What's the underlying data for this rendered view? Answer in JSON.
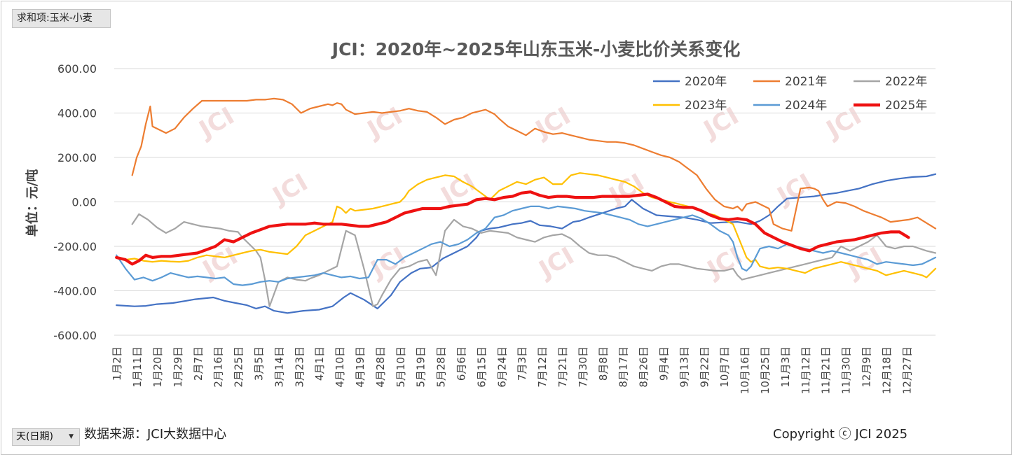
{
  "controls": {
    "field_button": "求和项:玉米-小麦",
    "axis_dropdown": "天(日期)",
    "dropdown_arrow": "▼"
  },
  "footer": {
    "source": "数据来源：JCI大数据中心",
    "copyright": "Copyright ⓒ JCI 2025"
  },
  "watermark": "JCI",
  "chart_data": {
    "type": "line",
    "title": "JCI：2020年~2025年山东玉米-小麦比价关系变化",
    "ylabel": "单位：元/吨",
    "xlabel": "",
    "ylim": [
      -600,
      600
    ],
    "yticks": [
      600,
      400,
      200,
      0,
      -200,
      -400,
      -600
    ],
    "ytick_labels": [
      "600.00",
      "400.00",
      "200.00",
      "0.00",
      "-200.00",
      "-400.00",
      "-600.00"
    ],
    "x_domain": [
      1,
      366
    ],
    "x_ticks": [
      2,
      11,
      20,
      29,
      38,
      47,
      56,
      65,
      74,
      83,
      92,
      101,
      110,
      119,
      128,
      137,
      146,
      155,
      164,
      173,
      182,
      191,
      200,
      209,
      218,
      227,
      236,
      245,
      254,
      263,
      272,
      281,
      290,
      299,
      308,
      317,
      326,
      335,
      344,
      353,
      362
    ],
    "categories": [
      "1月2日",
      "1月11日",
      "1月20日",
      "1月29日",
      "2月7日",
      "2月16日",
      "2月25日",
      "3月5日",
      "3月14日",
      "3月23日",
      "4月1日",
      "4月10日",
      "4月19日",
      "4月28日",
      "5月10日",
      "5月19日",
      "5月28日",
      "6月6日",
      "6月15日",
      "6月24日",
      "7月3日",
      "7月12日",
      "7月21日",
      "7月30日",
      "8月8日",
      "8月17日",
      "8月26日",
      "9月4日",
      "9月13日",
      "9月22日",
      "10月7日",
      "10月16日",
      "10月25日",
      "11月3日",
      "11月12日",
      "11月21日",
      "11月30日",
      "12月9日",
      "12月18日",
      "12月27日"
    ],
    "legend_position": "top-right",
    "grid": "horizontal",
    "series": [
      {
        "name": "2020年",
        "color": "#4472c4",
        "width": 2.2,
        "x": [
          2,
          10,
          15,
          20,
          27,
          33,
          37,
          40,
          45,
          50,
          55,
          60,
          64,
          68,
          72,
          78,
          85,
          92,
          98,
          103,
          106,
          112,
          118,
          124,
          128,
          133,
          137,
          142,
          147,
          152,
          158,
          162,
          164,
          168,
          172,
          178,
          182,
          186,
          190,
          195,
          200,
          205,
          208,
          212,
          218,
          224,
          228,
          231,
          236,
          242,
          248,
          254,
          260,
          266,
          272,
          278,
          284,
          288,
          292,
          296,
          300,
          306,
          312,
          318,
          322,
          327,
          332,
          338,
          344,
          350,
          356,
          362,
          366
        ],
        "y": [
          -465,
          -470,
          -468,
          -460,
          -455,
          -445,
          -438,
          -435,
          -430,
          -445,
          -455,
          -465,
          -480,
          -470,
          -490,
          -500,
          -490,
          -485,
          -470,
          -430,
          -410,
          -440,
          -480,
          -420,
          -360,
          -320,
          -300,
          -295,
          -255,
          -230,
          -200,
          -160,
          -130,
          -120,
          -115,
          -100,
          -95,
          -85,
          -105,
          -110,
          -120,
          -90,
          -85,
          -70,
          -50,
          -30,
          -20,
          10,
          -30,
          -60,
          -65,
          -70,
          -80,
          -95,
          -92,
          -90,
          -100,
          -85,
          -60,
          -20,
          15,
          20,
          25,
          35,
          40,
          50,
          60,
          80,
          95,
          105,
          112,
          115,
          125
        ]
      },
      {
        "name": "2021年",
        "color": "#ed7d31",
        "width": 2.2,
        "x": [
          9,
          11,
          13,
          15,
          17,
          18,
          20,
          24,
          28,
          32,
          36,
          40,
          44,
          48,
          52,
          56,
          60,
          64,
          68,
          72,
          76,
          80,
          84,
          88,
          92,
          96,
          98,
          100,
          102,
          104,
          108,
          112,
          116,
          120,
          124,
          128,
          132,
          136,
          140,
          144,
          148,
          152,
          156,
          160,
          164,
          166,
          168,
          170,
          172,
          176,
          180,
          184,
          188,
          192,
          196,
          200,
          204,
          208,
          212,
          216,
          220,
          224,
          228,
          232,
          236,
          240,
          244,
          248,
          252,
          256,
          260,
          264,
          268,
          272,
          276,
          278,
          280,
          282,
          286,
          290,
          292,
          294,
          298,
          302,
          306,
          310,
          312,
          314,
          316,
          318,
          322,
          326,
          330,
          334,
          338,
          342,
          346,
          350,
          354,
          358,
          362,
          366
        ],
        "y": [
          120,
          200,
          250,
          350,
          430,
          340,
          330,
          310,
          330,
          380,
          420,
          455,
          455,
          455,
          455,
          455,
          455,
          460,
          460,
          465,
          460,
          440,
          400,
          420,
          430,
          440,
          435,
          445,
          440,
          415,
          395,
          400,
          405,
          400,
          405,
          410,
          420,
          410,
          405,
          380,
          350,
          370,
          380,
          400,
          410,
          415,
          405,
          395,
          375,
          340,
          320,
          300,
          330,
          315,
          305,
          310,
          300,
          290,
          280,
          275,
          270,
          270,
          265,
          255,
          240,
          225,
          210,
          200,
          180,
          150,
          120,
          60,
          10,
          -20,
          -30,
          -20,
          -40,
          -10,
          0,
          -20,
          -30,
          -100,
          -120,
          -130,
          60,
          65,
          60,
          50,
          10,
          -20,
          0,
          -5,
          -20,
          -40,
          -55,
          -70,
          -90,
          -85,
          -80,
          -70,
          -95,
          -120
        ]
      },
      {
        "name": "2022年",
        "color": "#a5a5a5",
        "width": 2.2,
        "x": [
          9,
          12,
          16,
          20,
          24,
          28,
          32,
          36,
          40,
          44,
          48,
          52,
          56,
          58,
          60,
          62,
          64,
          66,
          68,
          70,
          74,
          78,
          82,
          86,
          88,
          92,
          96,
          100,
          104,
          108,
          112,
          116,
          118,
          120,
          124,
          128,
          132,
          136,
          140,
          144,
          148,
          152,
          156,
          160,
          164,
          168,
          172,
          176,
          180,
          184,
          188,
          192,
          196,
          200,
          204,
          208,
          212,
          216,
          220,
          224,
          228,
          232,
          236,
          240,
          244,
          248,
          252,
          256,
          260,
          264,
          268,
          272,
          276,
          278,
          280,
          284,
          288,
          292,
          296,
          300,
          304,
          308,
          312,
          316,
          320,
          324,
          328,
          332,
          336,
          340,
          344,
          348,
          352,
          356,
          362,
          366
        ],
        "y": [
          -100,
          -55,
          -80,
          -115,
          -140,
          -120,
          -90,
          -100,
          -110,
          -115,
          -120,
          -130,
          -135,
          -160,
          -180,
          -200,
          -220,
          -250,
          -350,
          -470,
          -360,
          -340,
          -350,
          -355,
          -345,
          -330,
          -310,
          -290,
          -130,
          -150,
          -300,
          -470,
          -460,
          -420,
          -350,
          -300,
          -290,
          -270,
          -260,
          -330,
          -130,
          -80,
          -110,
          -120,
          -140,
          -130,
          -135,
          -140,
          -160,
          -170,
          -180,
          -160,
          -150,
          -145,
          -165,
          -200,
          -230,
          -240,
          -240,
          -250,
          -270,
          -290,
          -300,
          -310,
          -290,
          -280,
          -280,
          -290,
          -300,
          -305,
          -310,
          -310,
          -300,
          -330,
          -350,
          -340,
          -330,
          -320,
          -310,
          -300,
          -290,
          -280,
          -270,
          -260,
          -250,
          -200,
          -220,
          -200,
          -180,
          -150,
          -200,
          -210,
          -200,
          -200,
          -220,
          -230
        ]
      },
      {
        "name": "2023年",
        "color": "#ffc000",
        "width": 2.2,
        "x": [
          2,
          6,
          10,
          14,
          18,
          22,
          26,
          30,
          34,
          38,
          42,
          46,
          50,
          54,
          58,
          62,
          66,
          70,
          74,
          78,
          82,
          86,
          90,
          94,
          98,
          100,
          102,
          104,
          106,
          108,
          112,
          116,
          120,
          124,
          128,
          130,
          132,
          136,
          140,
          144,
          148,
          152,
          156,
          160,
          164,
          168,
          172,
          176,
          180,
          184,
          188,
          192,
          196,
          200,
          204,
          208,
          212,
          216,
          220,
          224,
          228,
          232,
          236,
          240,
          244,
          248,
          252,
          256,
          260,
          264,
          268,
          272,
          276,
          278,
          280,
          282,
          284,
          286,
          288,
          292,
          296,
          300,
          304,
          308,
          312,
          316,
          320,
          324,
          328,
          332,
          336,
          340,
          344,
          348,
          352,
          356,
          360,
          362,
          366
        ],
        "y": [
          -250,
          -260,
          -255,
          -265,
          -270,
          -265,
          -268,
          -270,
          -265,
          -250,
          -240,
          -245,
          -250,
          -240,
          -230,
          -220,
          -215,
          -225,
          -230,
          -235,
          -200,
          -150,
          -130,
          -110,
          -90,
          -20,
          -30,
          -50,
          -30,
          -40,
          -35,
          -30,
          -20,
          -10,
          0,
          20,
          50,
          80,
          100,
          110,
          120,
          115,
          90,
          70,
          40,
          10,
          50,
          70,
          90,
          80,
          100,
          110,
          80,
          80,
          120,
          130,
          125,
          120,
          110,
          100,
          90,
          70,
          40,
          20,
          10,
          0,
          -10,
          -20,
          -30,
          -50,
          -60,
          -80,
          -100,
          -150,
          -200,
          -250,
          -270,
          -260,
          -290,
          -300,
          -295,
          -300,
          -310,
          -320,
          -300,
          -290,
          -280,
          -270,
          -280,
          -290,
          -300,
          -310,
          -330,
          -320,
          -310,
          -320,
          -330,
          -340,
          -300
        ]
      },
      {
        "name": "2024年",
        "color": "#5b9bd5",
        "width": 2.2,
        "x": [
          2,
          6,
          10,
          14,
          18,
          22,
          26,
          30,
          34,
          38,
          42,
          46,
          50,
          54,
          58,
          62,
          66,
          70,
          74,
          78,
          82,
          86,
          90,
          94,
          98,
          102,
          106,
          110,
          114,
          118,
          122,
          126,
          130,
          134,
          138,
          142,
          146,
          150,
          154,
          158,
          162,
          166,
          170,
          174,
          178,
          182,
          186,
          190,
          194,
          198,
          202,
          206,
          210,
          214,
          218,
          222,
          226,
          230,
          234,
          238,
          242,
          246,
          250,
          254,
          258,
          262,
          266,
          270,
          274,
          276,
          278,
          280,
          282,
          284,
          286,
          288,
          292,
          296,
          300,
          304,
          308,
          312,
          316,
          320,
          324,
          328,
          332,
          336,
          340,
          344,
          348,
          352,
          356,
          360,
          364,
          366
        ],
        "y": [
          -240,
          -300,
          -350,
          -340,
          -355,
          -340,
          -320,
          -330,
          -340,
          -335,
          -340,
          -345,
          -340,
          -370,
          -375,
          -370,
          -360,
          -355,
          -360,
          -345,
          -340,
          -335,
          -330,
          -320,
          -330,
          -340,
          -335,
          -345,
          -340,
          -260,
          -260,
          -280,
          -250,
          -230,
          -210,
          -190,
          -180,
          -200,
          -190,
          -170,
          -140,
          -120,
          -70,
          -60,
          -40,
          -30,
          -20,
          -20,
          -30,
          -20,
          -25,
          -30,
          -40,
          -45,
          -50,
          -60,
          -70,
          -80,
          -100,
          -110,
          -100,
          -90,
          -80,
          -70,
          -60,
          -75,
          -100,
          -130,
          -150,
          -180,
          -250,
          -300,
          -310,
          -290,
          -250,
          -210,
          -200,
          -210,
          -190,
          -200,
          -210,
          -220,
          -230,
          -220,
          -230,
          -240,
          -250,
          -260,
          -280,
          -270,
          -275,
          -280,
          -285,
          -280,
          -260,
          -250
        ]
      },
      {
        "name": "2025年",
        "color": "#ee1111",
        "width": 4.2,
        "x": [
          2,
          6,
          9,
          12,
          15,
          18,
          22,
          26,
          30,
          34,
          38,
          42,
          46,
          50,
          54,
          58,
          62,
          66,
          70,
          74,
          78,
          82,
          86,
          90,
          94,
          98,
          102,
          106,
          110,
          114,
          118,
          122,
          126,
          130,
          134,
          138,
          142,
          146,
          150,
          154,
          158,
          162,
          166,
          170,
          174,
          178,
          182,
          186,
          190,
          194,
          198,
          202,
          206,
          210,
          214,
          218,
          222,
          226,
          230,
          234,
          238,
          242,
          246,
          250,
          254,
          258,
          262,
          266,
          270,
          274,
          278,
          282,
          286,
          290,
          294,
          298,
          302,
          306,
          310,
          314,
          318,
          322,
          326,
          330,
          334,
          338,
          342,
          346,
          350,
          354
        ],
        "y": [
          -250,
          -260,
          -280,
          -265,
          -240,
          -250,
          -245,
          -245,
          -240,
          -235,
          -230,
          -215,
          -200,
          -170,
          -180,
          -160,
          -140,
          -125,
          -110,
          -105,
          -100,
          -100,
          -100,
          -95,
          -100,
          -100,
          -100,
          -105,
          -110,
          -110,
          -100,
          -90,
          -70,
          -50,
          -40,
          -30,
          -30,
          -30,
          -20,
          -15,
          -10,
          10,
          15,
          10,
          20,
          25,
          40,
          45,
          30,
          20,
          25,
          25,
          20,
          20,
          20,
          25,
          25,
          25,
          25,
          30,
          35,
          20,
          0,
          -20,
          -25,
          -25,
          -40,
          -60,
          -75,
          -80,
          -75,
          -80,
          -100,
          -140,
          -160,
          -180,
          -195,
          -210,
          -220,
          -200,
          -190,
          -180,
          -175,
          -170,
          -160,
          -150,
          -140,
          -135,
          -135,
          -160
        ]
      }
    ]
  }
}
